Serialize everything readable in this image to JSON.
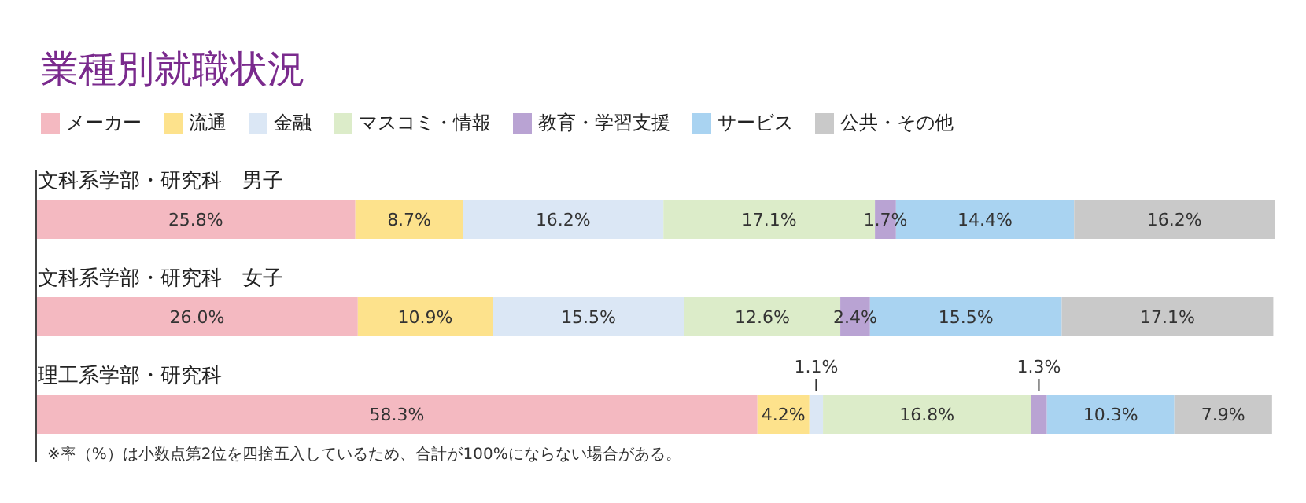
{
  "chart_data": {
    "type": "bar",
    "orientation": "horizontal",
    "stacked": true,
    "title": "業種別就職状況",
    "categories": [
      "文科系学部・研究科　男子",
      "文科系学部・研究科　女子",
      "理工系学部・研究科"
    ],
    "series": [
      {
        "name": "メーカー",
        "color": "#f4b9c1",
        "values": [
          25.8,
          26.0,
          58.3
        ],
        "value_labels": [
          "25.8%",
          "26.0%",
          "58.3%"
        ]
      },
      {
        "name": "流通",
        "color": "#fde28c",
        "values": [
          8.7,
          10.9,
          4.2
        ],
        "value_labels": [
          "8.7%",
          "10.9%",
          "4.2%"
        ]
      },
      {
        "name": "金融",
        "color": "#dbe7f5",
        "values": [
          16.2,
          15.5,
          1.1
        ],
        "value_labels": [
          "16.2%",
          "15.5%",
          "1.1%"
        ]
      },
      {
        "name": "マスコミ・情報",
        "color": "#dcecc9",
        "values": [
          17.1,
          12.6,
          16.8
        ],
        "value_labels": [
          "17.1%",
          "12.6%",
          "16.8%"
        ]
      },
      {
        "name": "教育・学習支援",
        "color": "#b9a3d3",
        "values": [
          1.7,
          2.4,
          1.3
        ],
        "value_labels": [
          "1.7%",
          "2.4%",
          "1.3%"
        ]
      },
      {
        "name": "サービス",
        "color": "#a9d3f1",
        "values": [
          14.4,
          15.5,
          10.3
        ],
        "value_labels": [
          "14.4%",
          "15.5%",
          "10.3%"
        ]
      },
      {
        "name": "公共・その他",
        "color": "#c9c9c9",
        "values": [
          16.2,
          17.1,
          7.9
        ],
        "value_labels": [
          "16.2%",
          "17.1%",
          "7.9%"
        ]
      }
    ],
    "legend": "top left",
    "tick_labels": "y",
    "annotations": [
      "※率（%）は小数点第2位を四捨五入しているため、合計が100%にならない場合がある。"
    ]
  }
}
